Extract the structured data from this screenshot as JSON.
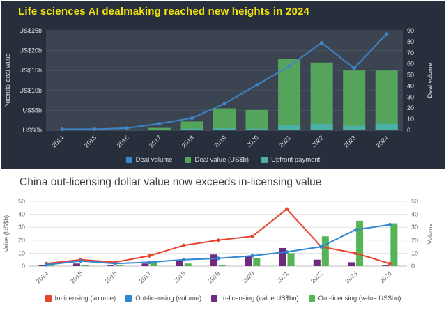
{
  "page": {
    "background": "#ffffff"
  },
  "chart_data": [
    {
      "id": "ai-dealmaking",
      "type": "bar+line",
      "title": "Life sciences AI dealmaking reached new heights in 2024",
      "categories": [
        "2014",
        "2015",
        "2016",
        "2017",
        "2018",
        "2019",
        "2020",
        "2021",
        "2022",
        "2023",
        "2024"
      ],
      "series": [
        {
          "name": "Deal volume",
          "type": "line",
          "axis": "right",
          "color": "#3d85c8",
          "values": [
            1,
            1,
            2,
            6,
            11,
            24,
            41,
            58,
            79,
            56,
            87
          ]
        },
        {
          "name": "Deal value (US$b)",
          "type": "bar",
          "axis": "left",
          "color": "#55a45c",
          "values": [
            0.1,
            0.1,
            0.2,
            0.6,
            2.2,
            5.5,
            5.1,
            18,
            17,
            15,
            15
          ]
        },
        {
          "name": "Upfront payment",
          "type": "bar",
          "axis": "left",
          "color": "#4bb0a5",
          "values": [
            0,
            0,
            0.1,
            0.2,
            0.4,
            0.5,
            0.4,
            1.2,
            1.6,
            1.1,
            1.6
          ]
        }
      ],
      "bar_mode": "overlay",
      "ylabel_left": "Potential deal value",
      "ylabel_right": "Deal volume",
      "ylim_left": [
        0,
        25
      ],
      "ylim_right": [
        0,
        90
      ],
      "yticks_left": [
        {
          "v": 0,
          "label": "US$0b"
        },
        {
          "v": 5,
          "label": "US$5b"
        },
        {
          "v": 10,
          "label": "US$10b"
        },
        {
          "v": 15,
          "label": "US$15b"
        },
        {
          "v": 20,
          "label": "US$20b"
        },
        {
          "v": 25,
          "label": "US$25b"
        }
      ],
      "yticks_right": [
        {
          "v": 0,
          "label": "0"
        },
        {
          "v": 10,
          "label": "10"
        },
        {
          "v": 20,
          "label": "20"
        },
        {
          "v": 30,
          "label": "30"
        },
        {
          "v": 40,
          "label": "40"
        },
        {
          "v": 50,
          "label": "50"
        },
        {
          "v": 60,
          "label": "60"
        },
        {
          "v": 70,
          "label": "70"
        },
        {
          "v": 80,
          "label": "80"
        },
        {
          "v": 90,
          "label": "90"
        }
      ],
      "grid": true,
      "legend_position": "bottom",
      "theme": {
        "bg": "#282f3c",
        "plot_bg": "#3c4452",
        "text": "#dde2e9",
        "grid": "#4a5363",
        "axis_line": "#5a6375",
        "title_color": "#f2e30a"
      }
    },
    {
      "id": "china-licensing",
      "type": "bar+line",
      "title": "China out-licensing dollar value now exceeds in-licensing value",
      "categories": [
        "2014",
        "2015",
        "2016",
        "2017",
        "2018",
        "2019",
        "2020",
        "2021",
        "2022",
        "2023",
        "2024"
      ],
      "series": [
        {
          "name": "In-licensing (volume)",
          "type": "line",
          "axis": "right",
          "color": "#e8432d",
          "values": [
            2,
            5,
            3,
            8,
            16,
            20,
            23,
            44,
            15,
            10,
            2
          ]
        },
        {
          "name": "Out-licensing (volume)",
          "type": "line",
          "axis": "right",
          "color": "#3186d3",
          "values": [
            1,
            4,
            2,
            3,
            5,
            6,
            8,
            11,
            15,
            28,
            32
          ]
        },
        {
          "name": "In-licensing (value US$bn)",
          "type": "bar",
          "axis": "left",
          "color": "#6e2a7d",
          "values": [
            1,
            2,
            0.5,
            2,
            4,
            9,
            8,
            14,
            5,
            3,
            0.5
          ]
        },
        {
          "name": "Out-licensing (value US$bn)",
          "type": "bar",
          "axis": "left",
          "color": "#56b356",
          "values": [
            0.5,
            1,
            0.5,
            3,
            2,
            1,
            6,
            10,
            23,
            35,
            33
          ]
        }
      ],
      "bar_mode": "group",
      "ylabel_left": "Value (US$b)",
      "ylabel_right": "Volume",
      "ylim_left": [
        0,
        50
      ],
      "ylim_right": [
        0,
        50
      ],
      "yticks_left": [
        {
          "v": 0,
          "label": "0"
        },
        {
          "v": 10,
          "label": "10"
        },
        {
          "v": 20,
          "label": "20"
        },
        {
          "v": 30,
          "label": "30"
        },
        {
          "v": 40,
          "label": "40"
        },
        {
          "v": 50,
          "label": "50"
        }
      ],
      "yticks_right": [
        {
          "v": 0,
          "label": "0"
        },
        {
          "v": 10,
          "label": "10"
        },
        {
          "v": 20,
          "label": "20"
        },
        {
          "v": 30,
          "label": "30"
        },
        {
          "v": 40,
          "label": "40"
        },
        {
          "v": 50,
          "label": "50"
        }
      ],
      "grid": true,
      "legend_position": "bottom",
      "theme": {
        "bg": "#ffffff",
        "plot_bg": "",
        "text": "#666666",
        "grid": "#e3e3e3",
        "axis_line": "#bfbfbf",
        "title_color": "#3d3d3d"
      }
    }
  ]
}
